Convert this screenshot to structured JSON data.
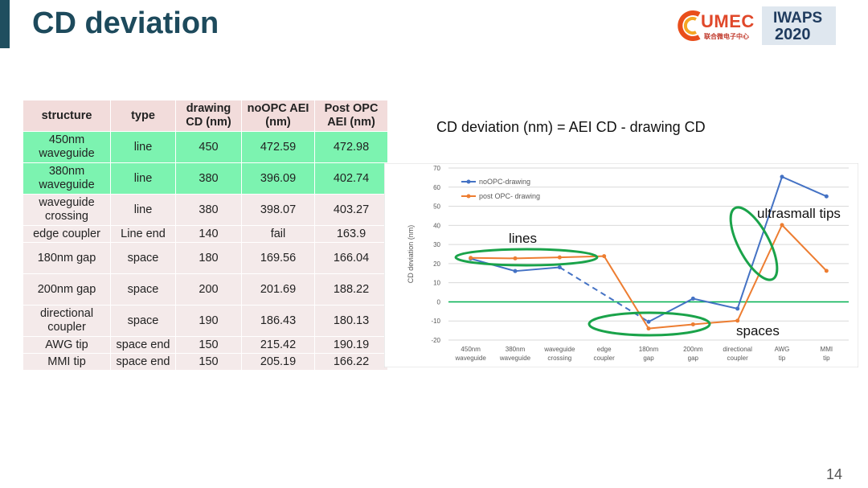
{
  "header": {
    "title": "CD deviation",
    "logos": {
      "umec_brand": "UMEC",
      "umec_sub": "联合微电子中心",
      "iwaps_line1": "IWAPS",
      "iwaps_line2": "2020"
    }
  },
  "table": {
    "headers": [
      "structure",
      "type",
      "drawing CD (nm)",
      "noOPC AEI (nm)",
      "Post OPC AEI (nm)"
    ],
    "rows": [
      [
        "450nm waveguide",
        "line",
        "450",
        "472.59",
        "472.98"
      ],
      [
        "380nm waveguide",
        "line",
        "380",
        "396.09",
        "402.74"
      ],
      [
        "waveguide crossing",
        "line",
        "380",
        "398.07",
        "403.27"
      ],
      [
        "edge coupler",
        "Line end",
        "140",
        "fail",
        "163.9"
      ],
      [
        "180nm gap",
        "space",
        "180",
        "169.56",
        "166.04"
      ],
      [
        "200nm gap",
        "space",
        "200",
        "201.69",
        "188.22"
      ],
      [
        "directional coupler",
        "space",
        "190",
        "186.43",
        "180.13"
      ],
      [
        "AWG tip",
        "space end",
        "150",
        "215.42",
        "190.19"
      ],
      [
        "MMI tip",
        "space end",
        "150",
        "205.19",
        "166.22"
      ]
    ]
  },
  "formula": "CD deviation (nm) = AEI CD - drawing CD",
  "chart_data": {
    "type": "line",
    "ylabel": "CD deviation (nm)",
    "ylim": [
      -20,
      70
    ],
    "yticks": [
      70,
      60,
      50,
      40,
      30,
      20,
      10,
      0,
      -10,
      -20
    ],
    "categories": [
      "450nm waveguide",
      "380nm waveguide",
      "waveguide crossing",
      "edge coupler",
      "180nm gap",
      "200nm gap",
      "directional coupler",
      "AWG tip",
      "MMI tip"
    ],
    "series": [
      {
        "name": "noOPC-drawing",
        "color": "#4472c4",
        "values": [
          22.59,
          16.09,
          18.07,
          null,
          -10.44,
          1.69,
          -3.57,
          65.42,
          55.19
        ]
      },
      {
        "name": "post OPC- drawing",
        "color": "#ed7d31",
        "values": [
          22.98,
          22.74,
          23.27,
          23.9,
          -13.96,
          -11.78,
          -9.87,
          40.19,
          16.22
        ]
      }
    ],
    "legend_position": "top-left",
    "annotations": [
      {
        "label": "lines"
      },
      {
        "label": "ultrasmall tips"
      },
      {
        "label": "spaces"
      }
    ],
    "zero_line_color": "#00b050",
    "annotation_color": "#1aa34a"
  },
  "page_number": "14"
}
